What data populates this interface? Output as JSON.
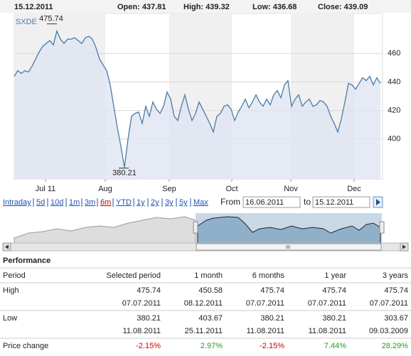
{
  "header": {
    "date": "15.12.2011",
    "open": "Open: 437.81",
    "high": "High: 439.32",
    "low": "Low: 436.68",
    "close": "Close: 439.09"
  },
  "chart_data": {
    "type": "line",
    "series": [
      {
        "name": "SXDE",
        "color": "#4d7ba6",
        "fill": "#dfe5f1",
        "values": [
          444,
          448,
          446,
          448,
          447,
          451,
          456,
          461,
          465,
          467,
          469,
          466,
          475.74,
          470,
          467,
          470,
          470,
          471,
          469,
          467,
          471,
          472,
          470,
          464,
          456,
          452,
          448,
          438,
          423,
          408,
          395,
          380.21,
          400,
          416,
          418,
          419,
          411,
          423,
          416,
          426,
          421,
          418,
          423,
          433,
          428,
          416,
          413,
          423,
          431,
          421,
          413,
          418,
          426,
          421,
          416,
          411,
          405,
          416,
          418,
          423,
          424,
          421,
          413,
          419,
          423,
          428,
          422,
          426,
          431,
          426,
          423,
          428,
          424,
          431,
          434,
          429,
          438,
          441,
          423,
          428,
          431,
          423,
          426,
          428,
          423,
          424,
          427,
          426,
          423,
          416,
          411,
          405,
          414,
          426,
          439,
          438,
          435,
          439,
          443,
          441,
          444,
          438,
          443,
          439.09
        ]
      }
    ],
    "annotations": [
      "475.74",
      "380.21"
    ],
    "xticks": [
      {
        "value": 8.8,
        "label": "Jul 11"
      },
      {
        "value": 25.6,
        "label": "Aug"
      },
      {
        "value": 43.6,
        "label": "Sep"
      },
      {
        "value": 61.2,
        "label": "Oct"
      },
      {
        "value": 77.8,
        "label": "Nov"
      },
      {
        "value": 95.6,
        "label": "Dec"
      }
    ],
    "ylim": [
      372,
      488
    ],
    "yticks": [
      400,
      420,
      440,
      460
    ],
    "grid": true
  },
  "range_links": {
    "items": [
      "Intraday",
      "5d",
      "10d",
      "1m",
      "3m",
      "6m",
      "YTD",
      "1y",
      "2y",
      "3y",
      "5y",
      "Max"
    ],
    "active": "6m"
  },
  "date_range": {
    "from_label": "From",
    "from": "16.06.2011",
    "to_label": "to",
    "to": "15.12.2011"
  },
  "performance": {
    "title": "Performance",
    "columns": [
      "Period",
      "Selected period",
      "1 month",
      "6 months",
      "1 year",
      "3 years"
    ],
    "rows": [
      {
        "label": "High",
        "values": [
          "475.74",
          "450.58",
          "475.74",
          "475.74",
          "475.74"
        ],
        "dates": [
          "07.07.2011",
          "08.12.2011",
          "07.07.2011",
          "07.07.2011",
          "07.07.2011"
        ]
      },
      {
        "label": "Low",
        "values": [
          "380.21",
          "403.67",
          "380.21",
          "380.21",
          "303.67"
        ],
        "dates": [
          "11.08.2011",
          "25.11.2011",
          "11.08.2011",
          "11.08.2011",
          "09.03.2009"
        ]
      },
      {
        "label": "Price change",
        "values": [
          "-2.15%",
          "2.97%",
          "-2.15%",
          "7.44%",
          "28.29%"
        ],
        "colors": [
          "#cc0000",
          "#2a9a2a",
          "#cc0000",
          "#2a9a2a",
          "#2a9a2a"
        ]
      }
    ]
  }
}
